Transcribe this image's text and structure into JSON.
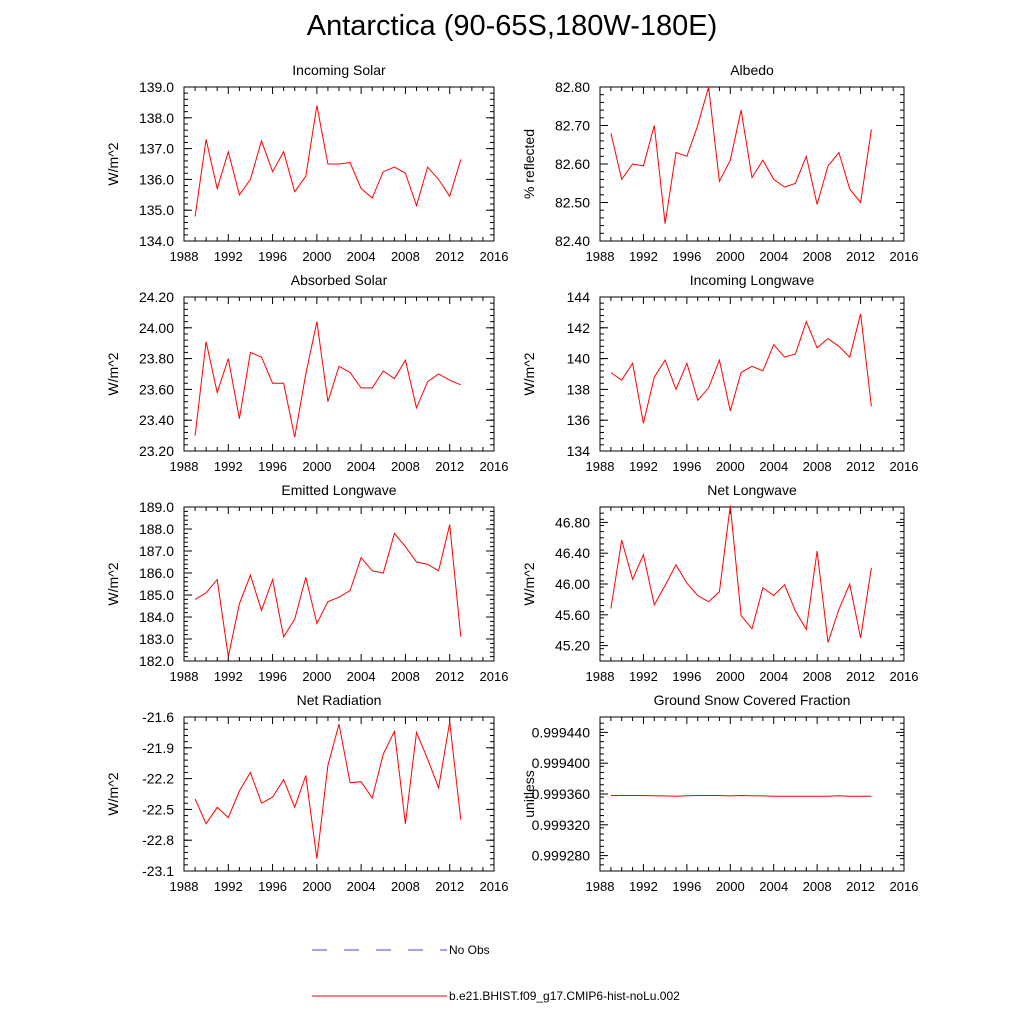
{
  "page": {
    "title": "Antarctica (90-65S,180W-180E)"
  },
  "legend": [
    {
      "label": "No Obs",
      "color": "#4a4ad8",
      "dash": "dashed"
    },
    {
      "label": "b.e21.BHIST.f09_g17.CMIP6-hist-noLu.002",
      "color": "#ff0000",
      "dash": "solid"
    }
  ],
  "chart_data": [
    {
      "type": "line",
      "title": "Incoming Solar",
      "ylabel": "W/m^2",
      "xlim": [
        1988,
        2016
      ],
      "xticks": [
        1988,
        1992,
        1996,
        2000,
        2004,
        2008,
        2012,
        2016
      ],
      "ylim": [
        134.0,
        139.0
      ],
      "yticks": [
        "134.0",
        "135.0",
        "136.0",
        "137.0",
        "138.0",
        "139.0"
      ],
      "series": [
        {
          "color": "#ff0000",
          "x": [
            1989,
            1990,
            1991,
            1992,
            1993,
            1994,
            1995,
            1996,
            1997,
            1998,
            1999,
            2000,
            2001,
            2002,
            2003,
            2004,
            2005,
            2006,
            2007,
            2008,
            2009,
            2010,
            2011,
            2012,
            2013
          ],
          "y": [
            134.8,
            137.3,
            135.7,
            136.9,
            135.5,
            136.0,
            137.25,
            136.25,
            136.9,
            135.6,
            136.1,
            138.4,
            136.5,
            136.5,
            136.55,
            135.7,
            135.4,
            136.25,
            136.4,
            136.2,
            135.15,
            136.4,
            136.0,
            135.45,
            136.65
          ]
        }
      ]
    },
    {
      "type": "line",
      "title": "Albedo",
      "ylabel": "% reflected",
      "xlim": [
        1988,
        2016
      ],
      "xticks": [
        1988,
        1992,
        1996,
        2000,
        2004,
        2008,
        2012,
        2016
      ],
      "ylim": [
        82.4,
        82.8
      ],
      "yticks": [
        "82.40",
        "82.50",
        "82.60",
        "82.70",
        "82.80"
      ],
      "series": [
        {
          "color": "#ff0000",
          "x": [
            1989,
            1990,
            1991,
            1992,
            1993,
            1994,
            1995,
            1996,
            1997,
            1998,
            1999,
            2000,
            2001,
            2002,
            2003,
            2004,
            2005,
            2006,
            2007,
            2008,
            2009,
            2010,
            2011,
            2012,
            2013
          ],
          "y": [
            82.68,
            82.56,
            82.6,
            82.595,
            82.7,
            82.445,
            82.63,
            82.62,
            82.7,
            82.8,
            82.555,
            82.61,
            82.74,
            82.565,
            82.61,
            82.56,
            82.54,
            82.55,
            82.62,
            82.495,
            82.595,
            82.63,
            82.535,
            82.5,
            82.69
          ]
        }
      ]
    },
    {
      "type": "line",
      "title": "Absorbed Solar",
      "ylabel": "W/m^2",
      "xlim": [
        1988,
        2016
      ],
      "xticks": [
        1988,
        1992,
        1996,
        2000,
        2004,
        2008,
        2012,
        2016
      ],
      "ylim": [
        23.2,
        24.2
      ],
      "yticks": [
        "23.20",
        "23.40",
        "23.60",
        "23.80",
        "24.00",
        "24.20"
      ],
      "series": [
        {
          "color": "#ff0000",
          "x": [
            1989,
            1990,
            1991,
            1992,
            1993,
            1994,
            1995,
            1996,
            1997,
            1998,
            1999,
            2000,
            2001,
            2002,
            2003,
            2004,
            2005,
            2006,
            2007,
            2008,
            2009,
            2010,
            2011,
            2012,
            2013
          ],
          "y": [
            23.3,
            23.91,
            23.58,
            23.8,
            23.41,
            23.84,
            23.81,
            23.64,
            23.64,
            23.29,
            23.7,
            24.04,
            23.52,
            23.75,
            23.71,
            23.61,
            23.61,
            23.72,
            23.67,
            23.79,
            23.48,
            23.65,
            23.7,
            23.66,
            23.63
          ]
        }
      ]
    },
    {
      "type": "line",
      "title": "Incoming Longwave",
      "ylabel": "W/m^2",
      "xlim": [
        1988,
        2016
      ],
      "xticks": [
        1988,
        1992,
        1996,
        2000,
        2004,
        2008,
        2012,
        2016
      ],
      "ylim": [
        134,
        144
      ],
      "yticks": [
        "134",
        "136",
        "138",
        "140",
        "142",
        "144"
      ],
      "series": [
        {
          "color": "#ff0000",
          "x": [
            1989,
            1990,
            1991,
            1992,
            1993,
            1994,
            1995,
            1996,
            1997,
            1998,
            1999,
            2000,
            2001,
            2002,
            2003,
            2004,
            2005,
            2006,
            2007,
            2008,
            2009,
            2010,
            2011,
            2012,
            2013
          ],
          "y": [
            139.1,
            138.6,
            139.7,
            135.8,
            138.8,
            139.9,
            138.0,
            139.7,
            137.3,
            138.1,
            139.9,
            136.6,
            139.1,
            139.5,
            139.2,
            140.9,
            140.1,
            140.3,
            142.4,
            140.7,
            141.3,
            140.8,
            140.1,
            142.9,
            136.9
          ]
        }
      ]
    },
    {
      "type": "line",
      "title": "Emitted Longwave",
      "ylabel": "W/m^2",
      "xlim": [
        1988,
        2016
      ],
      "xticks": [
        1988,
        1992,
        1996,
        2000,
        2004,
        2008,
        2012,
        2016
      ],
      "ylim": [
        182.0,
        189.0
      ],
      "yticks": [
        "182.0",
        "183.0",
        "184.0",
        "185.0",
        "186.0",
        "187.0",
        "188.0",
        "189.0"
      ],
      "series": [
        {
          "color": "#ff0000",
          "x": [
            1989,
            1990,
            1991,
            1992,
            1993,
            1994,
            1995,
            1996,
            1997,
            1998,
            1999,
            2000,
            2001,
            2002,
            2003,
            2004,
            2005,
            2006,
            2007,
            2008,
            2009,
            2010,
            2011,
            2012,
            2013
          ],
          "y": [
            184.8,
            185.1,
            185.7,
            182.2,
            184.6,
            185.9,
            184.3,
            185.7,
            183.1,
            183.9,
            185.8,
            183.7,
            184.7,
            184.9,
            185.2,
            186.7,
            186.1,
            186.0,
            187.8,
            187.2,
            186.5,
            186.4,
            186.1,
            188.2,
            183.1
          ]
        }
      ]
    },
    {
      "type": "line",
      "title": "Net Longwave",
      "ylabel": "W/m^2",
      "xlim": [
        1988,
        2016
      ],
      "xticks": [
        1988,
        1992,
        1996,
        2000,
        2004,
        2008,
        2012,
        2016
      ],
      "ylim": [
        45.0,
        47.0
      ],
      "yticks": [
        "45.20",
        "45.60",
        "46.00",
        "46.40",
        "46.80"
      ],
      "ytick_values": [
        45.2,
        45.6,
        46.0,
        46.4,
        46.8
      ],
      "series": [
        {
          "color": "#ff0000",
          "x": [
            1989,
            1990,
            1991,
            1992,
            1993,
            1994,
            1995,
            1996,
            1997,
            1998,
            1999,
            2000,
            2001,
            2002,
            2003,
            2004,
            2005,
            2006,
            2007,
            2008,
            2009,
            2010,
            2011,
            2012,
            2013
          ],
          "y": [
            45.68,
            46.57,
            46.06,
            46.38,
            45.73,
            45.98,
            46.25,
            46.01,
            45.85,
            45.77,
            45.9,
            47.02,
            45.59,
            45.42,
            45.95,
            45.85,
            45.99,
            45.65,
            45.41,
            46.43,
            45.24,
            45.67,
            46.0,
            45.3,
            46.21
          ]
        }
      ]
    },
    {
      "type": "line",
      "title": "Net Radiation",
      "ylabel": "W/m^2",
      "xlim": [
        1988,
        2016
      ],
      "xticks": [
        1988,
        1992,
        1996,
        2000,
        2004,
        2008,
        2012,
        2016
      ],
      "ylim": [
        -23.1,
        -21.6
      ],
      "yticks": [
        "-23.1",
        "-22.8",
        "-22.5",
        "-22.2",
        "-21.9",
        "-21.6"
      ],
      "series": [
        {
          "color": "#ff0000",
          "x": [
            1989,
            1990,
            1991,
            1992,
            1993,
            1994,
            1995,
            1996,
            1997,
            1998,
            1999,
            2000,
            2001,
            2002,
            2003,
            2004,
            2005,
            2006,
            2007,
            2008,
            2009,
            2010,
            2011,
            2012,
            2013
          ],
          "y": [
            -22.4,
            -22.64,
            -22.48,
            -22.58,
            -22.32,
            -22.14,
            -22.44,
            -22.38,
            -22.21,
            -22.48,
            -22.17,
            -22.98,
            -22.07,
            -21.67,
            -22.24,
            -22.23,
            -22.39,
            -21.96,
            -21.74,
            -22.64,
            -21.75,
            -22.01,
            -22.29,
            -21.65,
            -22.6
          ]
        }
      ]
    },
    {
      "type": "line",
      "title": "Ground Snow Covered Fraction",
      "ylabel": "unitless",
      "xlim": [
        1988,
        2016
      ],
      "xticks": [
        1988,
        1992,
        1996,
        2000,
        2004,
        2008,
        2012,
        2016
      ],
      "ylim": [
        0.99926,
        0.99946
      ],
      "yticks": [
        "0.999280",
        "0.999320",
        "0.999360",
        "0.999400",
        "0.999440"
      ],
      "ytick_values": [
        0.99928,
        0.99932,
        0.99936,
        0.9994,
        0.99944
      ],
      "series": [
        {
          "color": "#ff0000",
          "x": [
            1989,
            1990,
            1991,
            1992,
            1993,
            1994,
            1995,
            1996,
            1997,
            1998,
            1999,
            2000,
            2001,
            2002,
            2003,
            2004,
            2005,
            2006,
            2007,
            2008,
            2009,
            2010,
            2011,
            2012,
            2013
          ],
          "y": [
            0.999358,
            0.999358,
            0.999358,
            0.999358,
            0.9993578,
            0.9993575,
            0.9993572,
            0.9993578,
            0.999358,
            0.999358,
            0.999358,
            0.9993575,
            0.999358,
            0.9993578,
            0.9993575,
            0.9993572,
            0.999357,
            0.999357,
            0.999357,
            0.9993572,
            0.9993572,
            0.9993578,
            0.9993572,
            0.9993572,
            0.9993572
          ]
        }
      ]
    }
  ]
}
